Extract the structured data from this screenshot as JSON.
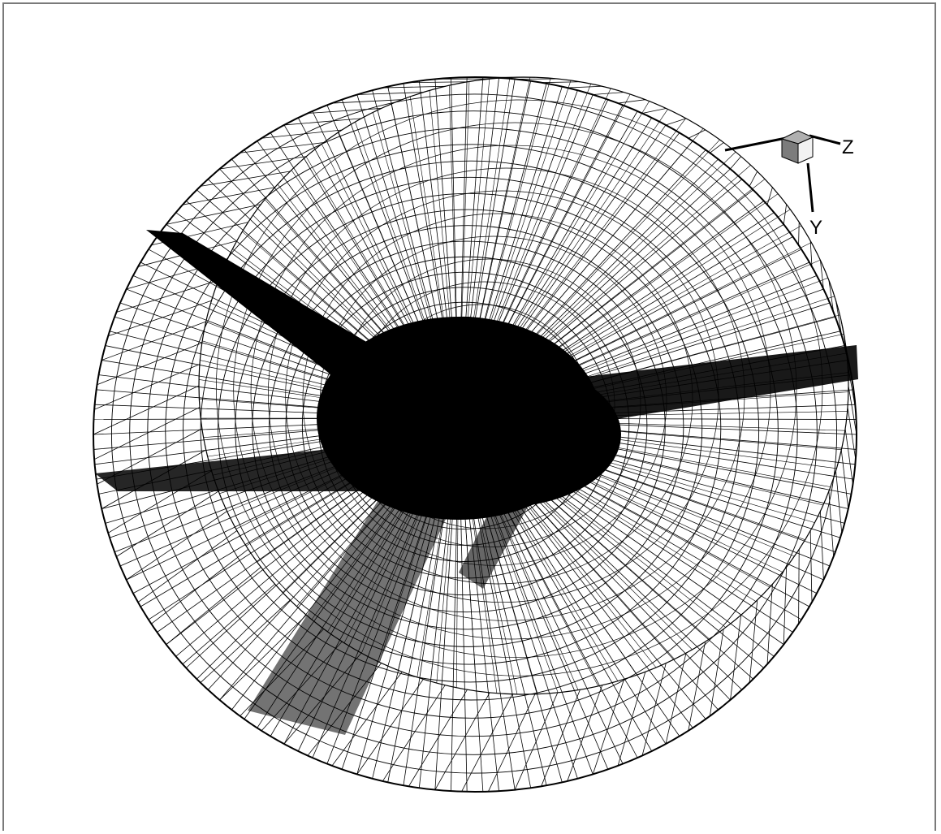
{
  "figure": {
    "axis_triad": {
      "labels": {
        "z": "Z",
        "y": "Y"
      }
    },
    "colors": {
      "background": "#ffffff",
      "mesh_lines": "#000000",
      "frame_border": "#7a7a7a",
      "triad_cube_light": "#f2f2f2",
      "triad_cube_shade": "#7c7c7c",
      "triad_cube_top": "#b0b0b0"
    }
  }
}
